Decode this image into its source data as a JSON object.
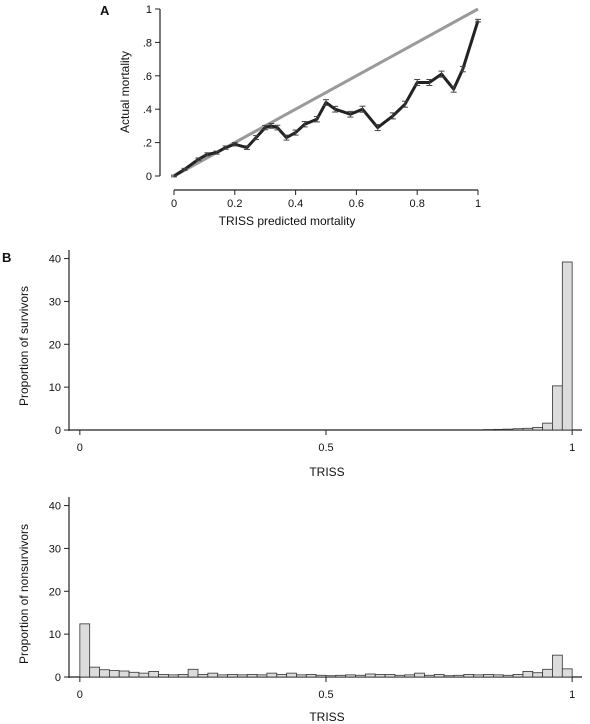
{
  "panel_a": {
    "letter": "A",
    "chart_data": {
      "type": "line",
      "xlabel": "TRISS predicted mortality",
      "ylabel": "Actual mortality",
      "xlim": [
        0,
        1
      ],
      "ylim": [
        0,
        1
      ],
      "xticks": [
        0,
        0.2,
        0.4,
        0.6,
        0.8,
        1
      ],
      "xtick_labels": [
        "0",
        "0.2",
        "0.4",
        "0.6",
        "0.8",
        "1"
      ],
      "yticks": [
        0,
        0.2,
        0.4,
        0.6,
        0.8,
        1
      ],
      "ytick_labels": [
        "0",
        ".2",
        ".4",
        ".6",
        ".8",
        "1"
      ],
      "reference_line": {
        "x": [
          0,
          1
        ],
        "y": [
          0,
          1
        ],
        "color": "#9a9a9a"
      },
      "series": [
        {
          "x": [
            0,
            0.035,
            0.08,
            0.11,
            0.14,
            0.17,
            0.2,
            0.24,
            0.27,
            0.3,
            0.32,
            0.34,
            0.37,
            0.4,
            0.43,
            0.47,
            0.5,
            0.53,
            0.58,
            0.62,
            0.67,
            0.72,
            0.76,
            0.8,
            0.84,
            0.88,
            0.92,
            0.95,
            1.0
          ],
          "y": [
            0,
            0.04,
            0.1,
            0.13,
            0.14,
            0.17,
            0.19,
            0.17,
            0.23,
            0.29,
            0.3,
            0.29,
            0.23,
            0.26,
            0.31,
            0.34,
            0.44,
            0.4,
            0.37,
            0.4,
            0.29,
            0.36,
            0.43,
            0.56,
            0.56,
            0.61,
            0.52,
            0.64,
            0.93
          ],
          "err": [
            0.005,
            0.006,
            0.008,
            0.009,
            0.009,
            0.01,
            0.01,
            0.011,
            0.012,
            0.013,
            0.014,
            0.014,
            0.015,
            0.015,
            0.016,
            0.016,
            0.017,
            0.017,
            0.017,
            0.018,
            0.018,
            0.018,
            0.018,
            0.018,
            0.018,
            0.018,
            0.018,
            0.016,
            0.008
          ],
          "color": "#222222"
        }
      ]
    }
  },
  "panel_b": {
    "letter": "B",
    "survivors": {
      "chart_data": {
        "type": "bar",
        "xlabel": "TRISS",
        "ylabel": "Proportion of survivors",
        "xlim": [
          -0.02,
          1.02
        ],
        "ylim": [
          0,
          42
        ],
        "xticks": [
          0,
          0.5,
          1
        ],
        "xtick_labels": [
          "0",
          "0.5",
          "1"
        ],
        "yticks": [
          0,
          10,
          20,
          30,
          40
        ],
        "ytick_labels": [
          "0",
          "10",
          "20",
          "30",
          "40"
        ],
        "bin_width": 0.02,
        "bins_start": [
          0.82,
          0.84,
          0.86,
          0.88,
          0.9,
          0.92,
          0.94,
          0.96,
          0.98
        ],
        "values": [
          0.1,
          0.15,
          0.2,
          0.3,
          0.4,
          0.6,
          1.6,
          10.3,
          39.2
        ],
        "color": "#dcdcdc"
      }
    },
    "nonsurvivors": {
      "chart_data": {
        "type": "bar",
        "xlabel": "TRISS",
        "ylabel": "Proportion of nonsurvivors",
        "xlim": [
          -0.02,
          1.02
        ],
        "ylim": [
          0,
          42
        ],
        "xticks": [
          0,
          0.5,
          1
        ],
        "xtick_labels": [
          "0",
          "0.5",
          "1"
        ],
        "yticks": [
          0,
          10,
          20,
          30,
          40
        ],
        "ytick_labels": [
          "0",
          "10",
          "20",
          "30",
          "40"
        ],
        "bin_width": 0.02,
        "bins_start": [
          0,
          0.02,
          0.04,
          0.06,
          0.08,
          0.1,
          0.12,
          0.14,
          0.16,
          0.18,
          0.2,
          0.22,
          0.24,
          0.26,
          0.28,
          0.3,
          0.32,
          0.34,
          0.36,
          0.38,
          0.4,
          0.42,
          0.44,
          0.46,
          0.48,
          0.5,
          0.52,
          0.54,
          0.56,
          0.58,
          0.6,
          0.62,
          0.64,
          0.66,
          0.68,
          0.7,
          0.72,
          0.74,
          0.76,
          0.78,
          0.8,
          0.82,
          0.84,
          0.86,
          0.88,
          0.9,
          0.92,
          0.94,
          0.96,
          0.98
        ],
        "values": [
          12.4,
          2.3,
          1.7,
          1.5,
          1.4,
          1.1,
          0.9,
          1.3,
          0.6,
          0.5,
          0.6,
          1.8,
          0.6,
          0.9,
          0.5,
          0.6,
          0.5,
          0.6,
          0.5,
          0.9,
          0.6,
          0.9,
          0.5,
          0.6,
          0.4,
          0.3,
          0.4,
          0.5,
          0.4,
          0.7,
          0.6,
          0.6,
          0.4,
          0.5,
          0.9,
          0.4,
          0.6,
          0.3,
          0.4,
          0.6,
          0.5,
          0.6,
          0.5,
          0.4,
          0.6,
          1.3,
          1.0,
          1.8,
          5.1,
          1.9
        ],
        "color": "#dcdcdc"
      }
    }
  }
}
